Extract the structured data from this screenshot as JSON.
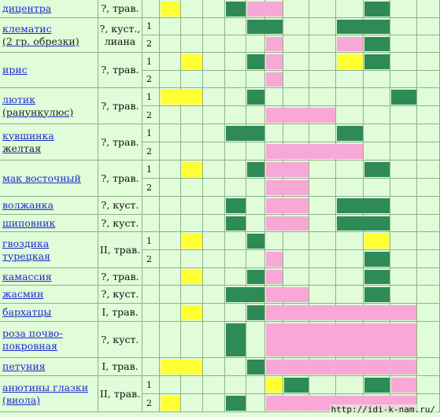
{
  "colors": {
    "background": "#e0fcd8",
    "grid": "#8fb28a",
    "name_link": "#1c2bd0",
    "yellow": "#ffff33",
    "green": "#2e8b57",
    "pink": "#f7a8d6"
  },
  "rows": [
    {
      "name": "дицентра",
      "type": "?, трав.",
      "vars": [
        ""
      ]
    },
    {
      "name": "клематис",
      "name_extra": " (2 гр. обрезки)",
      "type": "?, куст., лиана",
      "vars": [
        "1",
        "2"
      ]
    },
    {
      "name": "ирис",
      "type": "?, трав.",
      "vars": [
        "1",
        "2"
      ]
    },
    {
      "name": "лютик",
      "name_extra": " (ранункулюс)",
      "type": "?, трав.",
      "vars": [
        "1",
        "2"
      ]
    },
    {
      "name": "кувшинка",
      "name_extra": " желтая",
      "type": "?, трав.",
      "vars": [
        "1",
        "2"
      ]
    },
    {
      "name": "мак восточный",
      "type": "?, трав.",
      "vars": [
        "1",
        "2"
      ]
    },
    {
      "name": "волжанка",
      "type": "?, куст.",
      "vars": [
        ""
      ]
    },
    {
      "name": "шиповник",
      "type": "?, куст.",
      "vars": [
        ""
      ]
    },
    {
      "name": "гвоздика турецкая",
      "type": "II, трав.",
      "vars": [
        "1",
        "2"
      ]
    },
    {
      "name": "камассия",
      "type": "?, трав.",
      "vars": [
        ""
      ]
    },
    {
      "name": "жасмин",
      "type": "?, куст.",
      "vars": [
        ""
      ]
    },
    {
      "name": "бархатцы",
      "type": "I, трав.",
      "vars": [
        ""
      ]
    },
    {
      "name": "роза почво-покровная",
      "type": "?, куст.",
      "vars": [
        ""
      ]
    },
    {
      "name": "петуния",
      "type": "I, трав.",
      "vars": [
        ""
      ]
    },
    {
      "name": "анютины глазки (виола)",
      "type": "II, трав.",
      "vars": [
        "1",
        "2"
      ]
    }
  ],
  "watermark": "http://idi-k-nam.ru/"
}
